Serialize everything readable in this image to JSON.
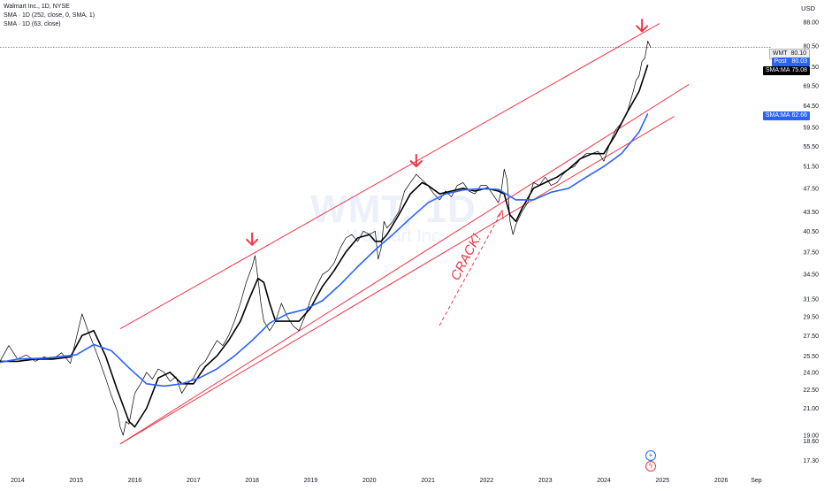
{
  "legend": {
    "symbol_line": "Walmart Inc., 1D, NYSE",
    "sma1": "SMA · 1D (252, close, 0, SMA, 1)",
    "sma2": "SMA · 1D (63, close)"
  },
  "currency": "USD",
  "watermark": {
    "ticker": "WMT, 1D",
    "name": "Walmart Inc"
  },
  "annotation": {
    "text": "CRACK!"
  },
  "tags": {
    "wmt": {
      "label": "WMT",
      "value": "80.10"
    },
    "post": {
      "label": "Post",
      "value": "80.03"
    },
    "sma252": {
      "label": "SMA:MA",
      "value": "75.08"
    },
    "sma63": {
      "label": "SMA:MA",
      "value": "62.66"
    }
  },
  "colors": {
    "price": "#000000",
    "sma_fast": "#000000",
    "sma_slow": "#2962ff",
    "channel": "#f23645",
    "arrow": "#f23645"
  },
  "icons": [
    "plus-circle-icon",
    "lightning-icon"
  ],
  "chart_data": {
    "type": "line",
    "x_axis": {
      "labels": [
        "2014",
        "2015",
        "2016",
        "2017",
        "2018",
        "2019",
        "2020",
        "2021",
        "2022",
        "2023",
        "2024",
        "2025",
        "2026",
        "Sep"
      ],
      "range": [
        2013.7,
        2026.85
      ]
    },
    "y_axis": {
      "scale": "log",
      "ticks": [
        "17.30",
        "18.60",
        "19.00",
        "21.00",
        "22.50",
        "24.00",
        "25.50",
        "27.50",
        "29.50",
        "31.50",
        "34.50",
        "37.50",
        "40.50",
        "43.50",
        "47.50",
        "51.50",
        "55.50",
        "59.50",
        "64.50",
        "69.50",
        "74.50",
        "80.50",
        "88.00"
      ],
      "range": [
        16.5,
        93
      ]
    },
    "series": [
      {
        "key": "price",
        "x": [
          2013.7,
          2013.85,
          2014.0,
          2014.15,
          2014.3,
          2014.45,
          2014.6,
          2014.75,
          2014.9,
          2015.05,
          2015.1,
          2015.2,
          2015.3,
          2015.4,
          2015.5,
          2015.6,
          2015.7,
          2015.75,
          2015.8,
          2015.85,
          2015.9,
          2015.95,
          2016.0,
          2016.1,
          2016.2,
          2016.3,
          2016.4,
          2016.5,
          2016.6,
          2016.7,
          2016.8,
          2016.9,
          2017.0,
          2017.1,
          2017.2,
          2017.3,
          2017.4,
          2017.5,
          2017.6,
          2017.7,
          2017.8,
          2017.9,
          2018.0,
          2018.05,
          2018.1,
          2018.15,
          2018.2,
          2018.3,
          2018.4,
          2018.5,
          2018.6,
          2018.7,
          2018.8,
          2018.9,
          2019.0,
          2019.1,
          2019.2,
          2019.3,
          2019.4,
          2019.5,
          2019.6,
          2019.7,
          2019.8,
          2019.9,
          2020.0,
          2020.1,
          2020.15,
          2020.2,
          2020.25,
          2020.3,
          2020.4,
          2020.5,
          2020.6,
          2020.7,
          2020.8,
          2020.9,
          2021.0,
          2021.1,
          2021.2,
          2021.3,
          2021.4,
          2021.5,
          2021.6,
          2021.7,
          2021.8,
          2021.9,
          2022.0,
          2022.1,
          2022.2,
          2022.25,
          2022.3,
          2022.35,
          2022.4,
          2022.45,
          2022.5,
          2022.6,
          2022.7,
          2022.8,
          2022.9,
          2023.0,
          2023.1,
          2023.2,
          2023.3,
          2023.4,
          2023.5,
          2023.6,
          2023.7,
          2023.8,
          2023.9,
          2024.0,
          2024.1,
          2024.2,
          2024.3,
          2024.4,
          2024.5,
          2024.55,
          2024.6,
          2024.65,
          2024.7,
          2024.75,
          2024.8
        ],
        "y": [
          25.0,
          26.5,
          25.2,
          25.6,
          25.0,
          25.4,
          25.2,
          25.8,
          24.8,
          28.5,
          29.8,
          28.0,
          26.5,
          25.0,
          23.5,
          22.0,
          20.8,
          19.6,
          19.0,
          20.0,
          19.8,
          21.0,
          22.2,
          23.0,
          24.0,
          23.4,
          24.3,
          24.0,
          23.2,
          23.6,
          22.2,
          23.0,
          23.5,
          24.5,
          25.0,
          26.0,
          27.0,
          26.5,
          27.5,
          29.0,
          31.0,
          33.5,
          35.5,
          37.0,
          34.0,
          31.0,
          29.0,
          28.0,
          29.0,
          31.0,
          29.5,
          28.5,
          28.0,
          29.5,
          31.5,
          33.0,
          34.5,
          35.0,
          36.0,
          38.0,
          39.5,
          40.0,
          39.0,
          40.5,
          40.0,
          40.5,
          36.5,
          38.0,
          42.0,
          41.0,
          42.0,
          43.5,
          47.0,
          48.5,
          50.0,
          49.0,
          48.0,
          46.5,
          45.5,
          47.0,
          46.0,
          48.0,
          48.5,
          47.0,
          46.5,
          48.0,
          48.0,
          46.5,
          45.0,
          47.0,
          51.0,
          49.0,
          42.0,
          40.0,
          41.5,
          43.5,
          45.0,
          48.5,
          48.0,
          49.5,
          48.0,
          48.5,
          50.0,
          51.0,
          51.5,
          53.0,
          54.0,
          54.0,
          54.5,
          52.5,
          56.0,
          59.0,
          60.5,
          63.0,
          68.0,
          71.0,
          72.0,
          76.0,
          77.0,
          82.0,
          80.0
        ]
      },
      {
        "key": "sma_fast",
        "x": [
          2013.7,
          2014.0,
          2014.3,
          2014.6,
          2014.9,
          2015.1,
          2015.3,
          2015.5,
          2015.7,
          2015.9,
          2016.0,
          2016.2,
          2016.4,
          2016.6,
          2016.8,
          2017.0,
          2017.2,
          2017.4,
          2017.6,
          2017.8,
          2017.95,
          2018.1,
          2018.2,
          2018.3,
          2018.4,
          2018.5,
          2018.6,
          2018.8,
          2019.0,
          2019.2,
          2019.4,
          2019.6,
          2019.8,
          2020.0,
          2020.1,
          2020.2,
          2020.3,
          2020.5,
          2020.7,
          2020.9,
          2021.0,
          2021.2,
          2021.4,
          2021.6,
          2021.8,
          2022.0,
          2022.2,
          2022.3,
          2022.4,
          2022.5,
          2022.6,
          2022.8,
          2023.0,
          2023.2,
          2023.4,
          2023.6,
          2023.8,
          2024.0,
          2024.2,
          2024.4,
          2024.6,
          2024.75
        ],
        "y": [
          25.0,
          25.0,
          25.2,
          25.2,
          25.4,
          27.5,
          28.0,
          25.5,
          22.5,
          20.0,
          19.6,
          21.0,
          23.5,
          24.0,
          23.0,
          23.0,
          24.5,
          25.5,
          27.0,
          29.0,
          31.5,
          34.0,
          33.5,
          31.0,
          29.0,
          29.0,
          29.0,
          29.0,
          30.5,
          33.0,
          35.0,
          37.5,
          39.5,
          40.0,
          39.0,
          39.0,
          40.0,
          43.0,
          46.5,
          48.5,
          48.0,
          46.5,
          47.0,
          47.5,
          47.0,
          47.5,
          47.0,
          46.5,
          43.0,
          42.0,
          44.0,
          47.5,
          48.5,
          49.5,
          51.0,
          53.0,
          54.0,
          54.0,
          58.0,
          63.0,
          68.0,
          75.08
        ]
      },
      {
        "key": "sma_slow",
        "x": [
          2013.7,
          2014.0,
          2014.5,
          2015.0,
          2015.3,
          2015.6,
          2015.9,
          2016.2,
          2016.5,
          2016.8,
          2017.1,
          2017.4,
          2017.7,
          2018.0,
          2018.3,
          2018.6,
          2018.9,
          2019.2,
          2019.5,
          2019.8,
          2020.1,
          2020.4,
          2020.7,
          2021.0,
          2021.3,
          2021.6,
          2021.9,
          2022.2,
          2022.5,
          2022.8,
          2023.1,
          2023.4,
          2023.7,
          2024.0,
          2024.3,
          2024.6,
          2024.75
        ],
        "y": [
          24.9,
          25.2,
          25.3,
          25.6,
          26.6,
          26.0,
          24.4,
          23.0,
          22.8,
          23.0,
          23.5,
          24.3,
          25.5,
          27.0,
          28.8,
          29.8,
          30.3,
          31.3,
          33.2,
          35.5,
          37.8,
          40.0,
          42.5,
          45.0,
          46.5,
          47.2,
          47.4,
          47.3,
          45.5,
          45.5,
          46.8,
          47.5,
          49.5,
          51.5,
          54.0,
          58.5,
          62.66
        ]
      }
    ],
    "channel_lines": [
      {
        "name": "upper",
        "x": [
          2015.75,
          2024.95
        ],
        "y": [
          28.2,
          87.5
        ]
      },
      {
        "name": "middle",
        "x": [
          2015.75,
          2025.45
        ],
        "y": [
          18.4,
          69.8
        ]
      },
      {
        "name": "lower",
        "x": [
          2015.75,
          2025.2
        ],
        "y": [
          18.4,
          62.0
        ]
      }
    ],
    "markers": [
      {
        "type": "down-arrow",
        "x": 2018.0,
        "y": 38.5
      },
      {
        "type": "down-arrow",
        "x": 2020.8,
        "y": 51.5
      },
      {
        "type": "down-arrow",
        "x": 2024.65,
        "y": 85.0
      }
    ],
    "last_price_line": 80.1
  }
}
